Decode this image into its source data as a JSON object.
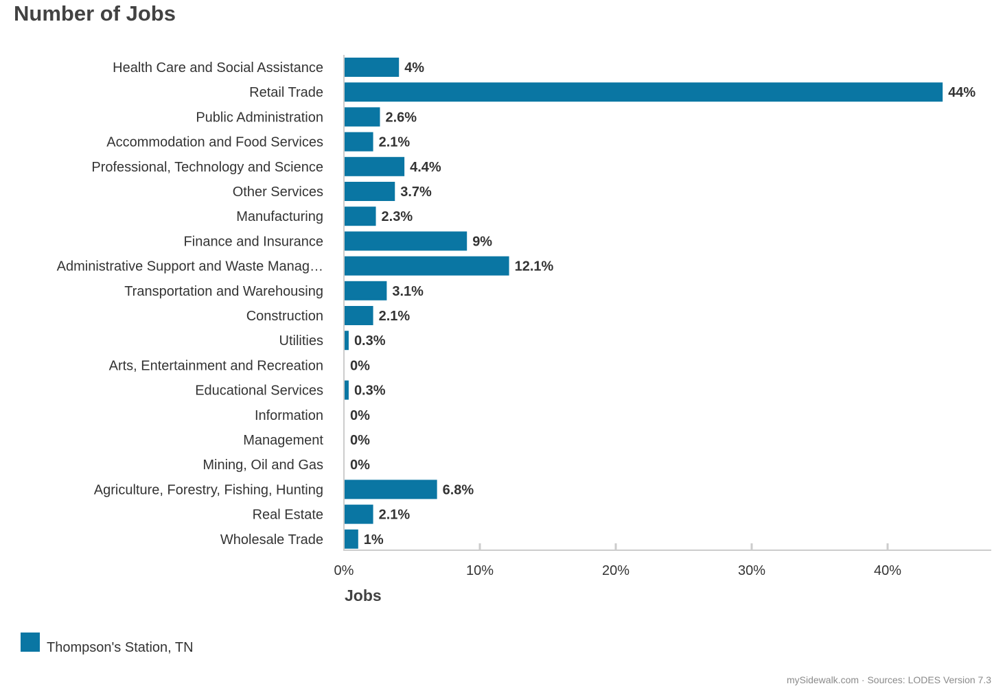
{
  "title": "Number of Jobs",
  "source_text": "mySidewalk.com · Sources: LODES Version 7.3",
  "colors": {
    "bar": "#0a76a3",
    "axis": "#cccccc",
    "text": "#333333"
  },
  "chart_data": {
    "type": "bar",
    "orientation": "horizontal",
    "title": "Number of Jobs",
    "xlabel": "Jobs",
    "ylabel": "",
    "xlim": [
      0,
      47.5
    ],
    "x_ticks": [
      0,
      10,
      20,
      30,
      40
    ],
    "x_tick_labels": [
      "0%",
      "10%",
      "20%",
      "30%",
      "40%"
    ],
    "grid": false,
    "legend_position": "bottom-left",
    "categories": [
      "Health Care and Social Assistance",
      "Retail Trade",
      "Public Administration",
      "Accommodation and Food Services",
      "Professional, Technology and Science",
      "Other Services",
      "Manufacturing",
      "Finance and Insurance",
      "Administrative Support and Waste Manag…",
      "Transportation and Warehousing",
      "Construction",
      "Utilities",
      "Arts, Entertainment and Recreation",
      "Educational Services",
      "Information",
      "Management",
      "Mining, Oil and Gas",
      "Agriculture, Forestry, Fishing, Hunting",
      "Real Estate",
      "Wholesale Trade"
    ],
    "series": [
      {
        "name": "Thompson's Station, TN",
        "values": [
          4,
          44,
          2.6,
          2.1,
          4.4,
          3.7,
          2.3,
          9,
          12.1,
          3.1,
          2.1,
          0.3,
          0,
          0.3,
          0,
          0,
          0,
          6.8,
          2.1,
          1
        ],
        "value_labels": [
          "4%",
          "44%",
          "2.6%",
          "2.1%",
          "4.4%",
          "3.7%",
          "2.3%",
          "9%",
          "12.1%",
          "3.1%",
          "2.1%",
          "0.3%",
          "0%",
          "0.3%",
          "0%",
          "0%",
          "0%",
          "6.8%",
          "2.1%",
          "1%"
        ]
      }
    ]
  }
}
